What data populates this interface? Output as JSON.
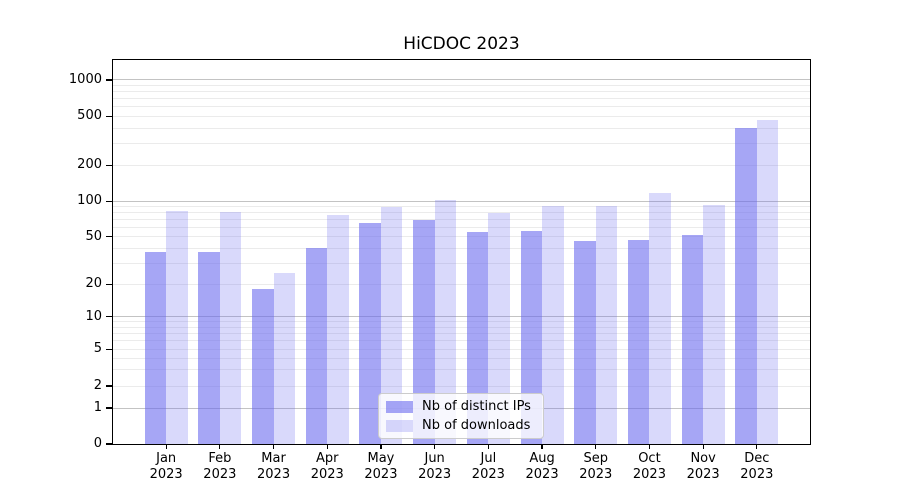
{
  "chart_data": {
    "type": "bar",
    "title": "HiCDOC 2023",
    "categories": [
      "Jan",
      "Feb",
      "Mar",
      "Apr",
      "May",
      "Jun",
      "Jul",
      "Aug",
      "Sep",
      "Oct",
      "Nov",
      "Dec"
    ],
    "year_label": "2023",
    "series": [
      {
        "name": "Nb of distinct IPs",
        "color": "rgba(102,102,238,0.58)",
        "values": [
          37,
          37,
          18,
          40,
          65,
          69,
          55,
          56,
          46,
          47,
          52,
          400
        ]
      },
      {
        "name": "Nb of downloads",
        "color": "rgba(102,102,238,0.25)",
        "values": [
          82,
          81,
          25,
          77,
          90,
          102,
          79,
          92,
          91,
          118,
          93,
          470
        ]
      }
    ],
    "yticks": [
      0,
      1,
      2,
      5,
      10,
      20,
      50,
      100,
      200,
      500,
      1000
    ],
    "yscale": "log (0 shown at baseline)",
    "ylim": [
      0,
      1460
    ],
    "xlabel": "",
    "ylabel": "",
    "grid": {
      "orientation": "horizontal",
      "major_color": "#c3c3c3",
      "minor_color": "#ebebeb"
    },
    "legend": {
      "position": "inside-bottom-center",
      "items": [
        "Nb of distinct IPs",
        "Nb of downloads"
      ]
    }
  }
}
